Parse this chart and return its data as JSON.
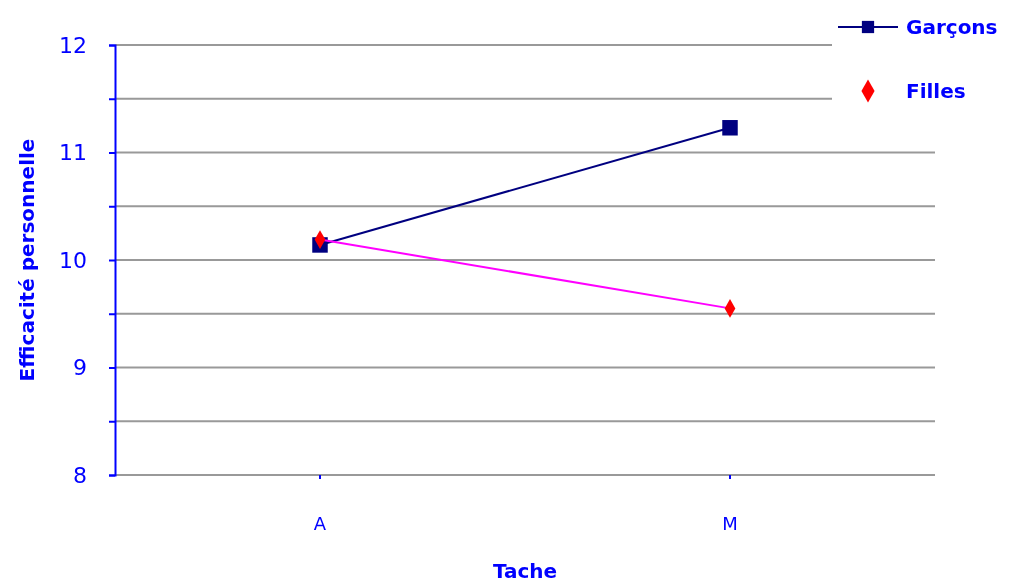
{
  "chart_data": {
    "type": "line",
    "xlabel": "Tache",
    "ylabel": "Efficacité personnelle",
    "categories": [
      "A",
      "M"
    ],
    "series": [
      {
        "name": "Garçons",
        "color": "#000080",
        "marker": "square",
        "values": [
          10.14,
          11.23
        ]
      },
      {
        "name": "Filles",
        "color": "#ff00ff",
        "colors": [
          "#ff0000",
          "#ff0000"
        ],
        "marker": "diamond",
        "values": [
          10.19,
          9.55
        ]
      }
    ],
    "ylim": [
      8,
      12
    ],
    "yticks": [
      8,
      {
        "value": 8.5,
        "label": null
      },
      9,
      {
        "value": 9.5,
        "label": null
      },
      10,
      {
        "value": 10.5,
        "label": null
      },
      11,
      {
        "value": 11.5,
        "label": null
      },
      12
    ],
    "grid": "y",
    "legend": "top right",
    "line_style": "solid"
  }
}
